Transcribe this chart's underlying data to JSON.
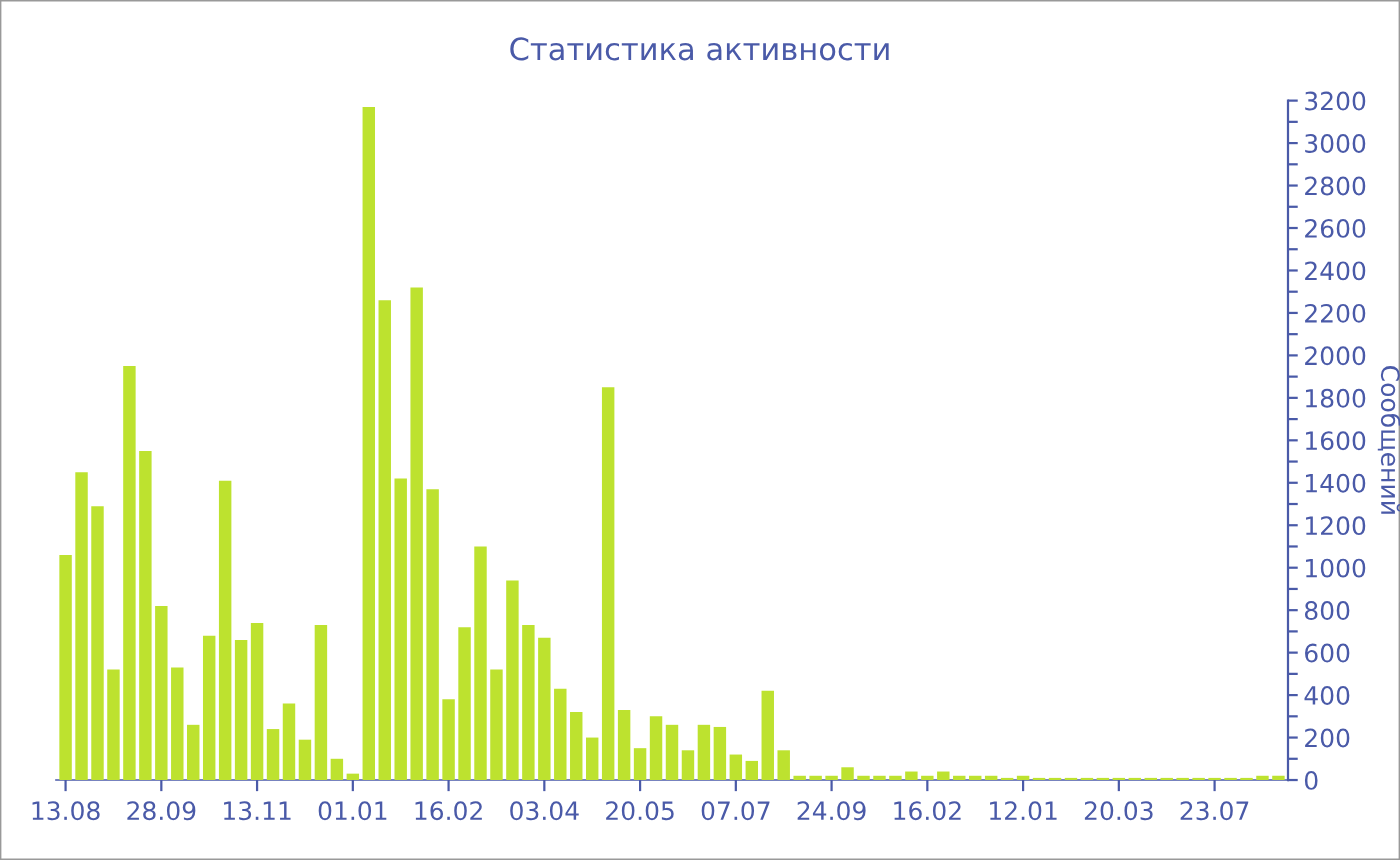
{
  "chart_data": {
    "type": "bar",
    "title": "Статистика активности",
    "ylabel": "Сообщений",
    "categories": [
      "13.08",
      null,
      null,
      null,
      null,
      null,
      "28.09",
      null,
      null,
      null,
      null,
      null,
      "13.11",
      null,
      null,
      null,
      null,
      null,
      "01.01",
      null,
      null,
      null,
      null,
      null,
      "16.02",
      null,
      null,
      null,
      null,
      null,
      "03.04",
      null,
      null,
      null,
      null,
      null,
      "20.05",
      null,
      null,
      null,
      null,
      null,
      "07.07",
      null,
      null,
      null,
      null,
      null,
      "24.09",
      null,
      null,
      null,
      null,
      null,
      "16.02",
      null,
      null,
      null,
      null,
      null,
      "12.01",
      null,
      null,
      null,
      null,
      null,
      "20.03",
      null,
      null,
      null,
      null,
      null,
      "23.07",
      null,
      null,
      null,
      null
    ],
    "values": [
      1060,
      1450,
      1290,
      520,
      1950,
      1550,
      820,
      530,
      260,
      680,
      1410,
      660,
      740,
      240,
      360,
      190,
      730,
      100,
      30,
      3170,
      2260,
      1420,
      2320,
      1370,
      380,
      720,
      1100,
      520,
      940,
      730,
      670,
      430,
      320,
      200,
      1850,
      330,
      150,
      300,
      260,
      140,
      260,
      250,
      120,
      90,
      420,
      140,
      20,
      20,
      20,
      60,
      20,
      20,
      20,
      40,
      20,
      40,
      20,
      20,
      20,
      10,
      20,
      10,
      10,
      10,
      10,
      10,
      10,
      10,
      10,
      10,
      10,
      10,
      10,
      10,
      10,
      20,
      20
    ],
    "color": "#bde22f",
    "ylim": [
      0,
      3200
    ],
    "yticks": [
      0,
      {
        "value": 100,
        "label": null
      },
      200,
      {
        "value": 300,
        "label": null
      },
      400,
      {
        "value": 500,
        "label": null
      },
      600,
      {
        "value": 700,
        "label": null
      },
      800,
      {
        "value": 900,
        "label": null
      },
      1000,
      {
        "value": 1100,
        "label": null
      },
      1200,
      {
        "value": 1300,
        "label": null
      },
      1400,
      {
        "value": 1500,
        "label": null
      },
      1600,
      {
        "value": 1700,
        "label": null
      },
      1800,
      {
        "value": 1900,
        "label": null
      },
      2000,
      {
        "value": 2100,
        "label": null
      },
      2200,
      {
        "value": 2300,
        "label": null
      },
      2400,
      {
        "value": 2500,
        "label": null
      },
      2600,
      {
        "value": 2700,
        "label": null
      },
      2800,
      {
        "value": 2900,
        "label": null
      },
      3000,
      {
        "value": 3100,
        "label": null
      },
      3200
    ],
    "legend": false
  }
}
